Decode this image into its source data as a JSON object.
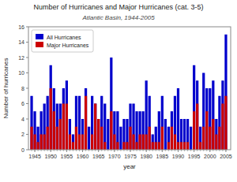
{
  "chart_data": {
    "type": "bar",
    "title": "Number of Hurricanes and Major Hurricanes (cat. 3-5)",
    "subtitle": "Atlantic Basin, 1944-2005",
    "xlabel": "year",
    "ylabel": "Number of hurricanes",
    "x": [
      1944,
      1945,
      1946,
      1947,
      1948,
      1949,
      1950,
      1951,
      1952,
      1953,
      1954,
      1955,
      1956,
      1957,
      1958,
      1959,
      1960,
      1961,
      1962,
      1963,
      1964,
      1965,
      1966,
      1967,
      1968,
      1969,
      1970,
      1971,
      1972,
      1973,
      1974,
      1975,
      1976,
      1977,
      1978,
      1979,
      1980,
      1981,
      1982,
      1983,
      1984,
      1985,
      1986,
      1987,
      1988,
      1989,
      1990,
      1991,
      1992,
      1993,
      1994,
      1995,
      1996,
      1997,
      1998,
      1999,
      2000,
      2001,
      2002,
      2003,
      2004,
      2005
    ],
    "xlim": [
      1943,
      2006.5
    ],
    "xticks": [
      1945,
      1950,
      1955,
      1960,
      1965,
      1970,
      1975,
      1980,
      1985,
      1990,
      1995,
      2000,
      2005
    ],
    "ylim": [
      0,
      16
    ],
    "yticks": [
      0,
      2,
      4,
      6,
      8,
      10,
      12,
      14,
      16
    ],
    "series": [
      {
        "name": "All Hurricanes",
        "color": "#0000cc",
        "values": [
          7,
          5,
          3,
          5,
          6,
          7,
          11,
          8,
          6,
          6,
          8,
          9,
          4,
          2,
          7,
          7,
          4,
          8,
          3,
          7,
          6,
          4,
          7,
          6,
          4,
          12,
          5,
          5,
          3,
          4,
          4,
          6,
          6,
          5,
          5,
          5,
          9,
          7,
          2,
          3,
          5,
          7,
          4,
          3,
          5,
          7,
          8,
          4,
          4,
          4,
          3,
          11,
          9,
          3,
          10,
          8,
          8,
          9,
          4,
          7,
          9,
          15
        ]
      },
      {
        "name": "Major Hurricanes",
        "color": "#cc0000",
        "values": [
          3,
          2,
          1,
          2,
          2,
          3,
          8,
          5,
          3,
          4,
          6,
          6,
          2,
          1,
          3,
          2,
          2,
          7,
          0,
          2,
          6,
          4,
          3,
          1,
          0,
          5,
          2,
          1,
          0,
          1,
          1,
          3,
          2,
          1,
          2,
          2,
          2,
          3,
          1,
          1,
          1,
          3,
          0,
          1,
          3,
          2,
          1,
          1,
          1,
          1,
          0,
          5,
          6,
          1,
          3,
          5,
          3,
          4,
          2,
          3,
          6,
          7
        ]
      }
    ],
    "stacked": false,
    "grid": false,
    "legend": "upper left"
  }
}
